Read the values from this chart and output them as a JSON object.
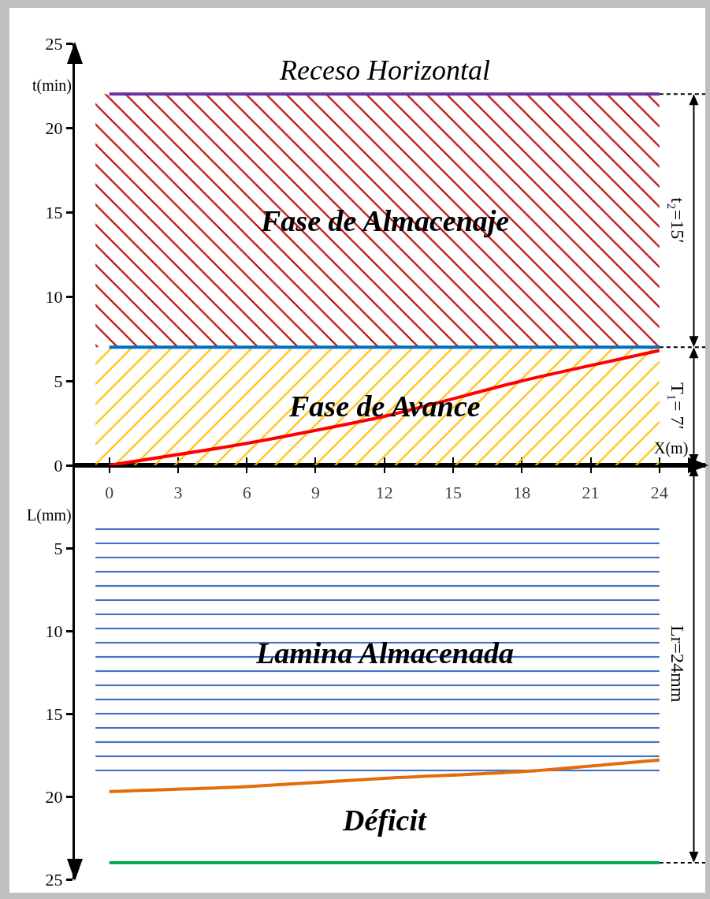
{
  "chart_data": [
    {
      "type": "line",
      "ylabel": "t(min)",
      "xlabel": "X(m)",
      "xlim": [
        -1.5,
        26
      ],
      "ylim": [
        0,
        25
      ],
      "xticks": [
        0,
        3,
        6,
        9,
        12,
        15,
        18,
        21,
        24
      ],
      "yticks": [
        0,
        5,
        10,
        15,
        20,
        25
      ],
      "tick_labels": "y",
      "grid": false,
      "series": [
        {
          "name": "Receso Horizontal",
          "color": "#7030a0",
          "x": [
            0,
            24
          ],
          "values": [
            22,
            22
          ]
        },
        {
          "color": "#0070c0",
          "x": [
            0,
            24
          ],
          "values": [
            7,
            7
          ]
        },
        {
          "color": "#ff0000",
          "x": [
            0,
            6,
            12,
            18,
            24
          ],
          "values": [
            0,
            1.3,
            2.9,
            5,
            6.8
          ]
        }
      ],
      "bands": [
        {
          "axis": "y",
          "from": 7,
          "to": 22,
          "label": "Fase de Almacenaje",
          "color": "#c00000"
        },
        {
          "axis": "y",
          "from": 0,
          "to": 7,
          "label": "Fase de Avance",
          "color": "#ffc000"
        }
      ],
      "annotations": [
        "t₂=15′",
        "T₁= 7′"
      ]
    },
    {
      "type": "line",
      "ylabel": "L(mm)",
      "xlim": [
        -1.5,
        26
      ],
      "ylim": [
        25,
        0
      ],
      "xticks": [
        0,
        3,
        6,
        9,
        12,
        15,
        18,
        21,
        24
      ],
      "yticks": [
        5,
        10,
        15,
        20,
        25
      ],
      "grid": false,
      "series": [
        {
          "color": "#e46c0a",
          "x": [
            0,
            6,
            12,
            18,
            24
          ],
          "values": [
            19.7,
            19.4,
            18.9,
            18.5,
            17.8
          ]
        },
        {
          "color": "#00b050",
          "x": [
            0,
            24
          ],
          "values": [
            24,
            24
          ]
        }
      ],
      "bands": [
        {
          "axis": "y",
          "from": 3.5,
          "to": 19.2,
          "label": "Lamina Almacenada",
          "color": "#4472c4"
        }
      ],
      "annotations": [
        "Lr=24mm",
        "Déficit"
      ]
    }
  ]
}
